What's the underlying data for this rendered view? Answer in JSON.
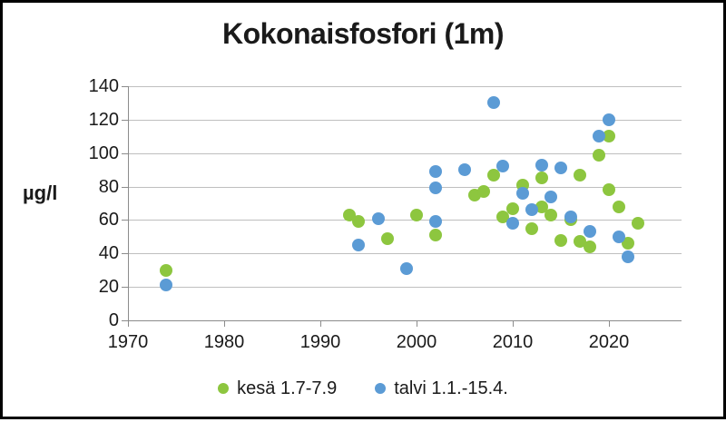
{
  "chart_data": {
    "type": "scatter",
    "title": "Kokonaisfosfori (1m)",
    "ylabel": "µg/l",
    "xlabel": "",
    "x_ticks": [
      1970,
      1980,
      1990,
      2000,
      2010,
      2020
    ],
    "y_ticks": [
      0,
      20,
      40,
      60,
      80,
      100,
      120,
      140
    ],
    "xlim": [
      1970,
      2027
    ],
    "ylim": [
      0,
      140
    ],
    "grid": "horizontal",
    "legend_position": "bottom",
    "series": [
      {
        "name": "kesä 1.7-7.9",
        "color": "#8DC63F",
        "points": [
          [
            1974,
            30
          ],
          [
            1993,
            63
          ],
          [
            1994,
            59
          ],
          [
            1997,
            49
          ],
          [
            2000,
            63
          ],
          [
            2002,
            51
          ],
          [
            2006,
            75
          ],
          [
            2007,
            77
          ],
          [
            2008,
            87
          ],
          [
            2009,
            62
          ],
          [
            2010,
            67
          ],
          [
            2011,
            81
          ],
          [
            2012,
            55
          ],
          [
            2013,
            68
          ],
          [
            2013,
            85
          ],
          [
            2014,
            63
          ],
          [
            2015,
            48
          ],
          [
            2016,
            60
          ],
          [
            2017,
            87
          ],
          [
            2017,
            47
          ],
          [
            2018,
            44
          ],
          [
            2019,
            99
          ],
          [
            2020,
            110
          ],
          [
            2020,
            78
          ],
          [
            2021,
            68
          ],
          [
            2022,
            46
          ],
          [
            2023,
            58
          ]
        ]
      },
      {
        "name": "talvi 1.1.-15.4.",
        "color": "#5B9BD5",
        "points": [
          [
            1974,
            21
          ],
          [
            1994,
            45
          ],
          [
            1996,
            61
          ],
          [
            1999,
            31
          ],
          [
            2002,
            89
          ],
          [
            2002,
            79
          ],
          [
            2002,
            59
          ],
          [
            2005,
            90
          ],
          [
            2008,
            130
          ],
          [
            2009,
            92
          ],
          [
            2010,
            58
          ],
          [
            2011,
            76
          ],
          [
            2012,
            66
          ],
          [
            2013,
            93
          ],
          [
            2014,
            74
          ],
          [
            2015,
            91
          ],
          [
            2016,
            62
          ],
          [
            2018,
            53
          ],
          [
            2019,
            110
          ],
          [
            2020,
            120
          ],
          [
            2021,
            50
          ],
          [
            2022,
            38
          ]
        ]
      }
    ]
  }
}
